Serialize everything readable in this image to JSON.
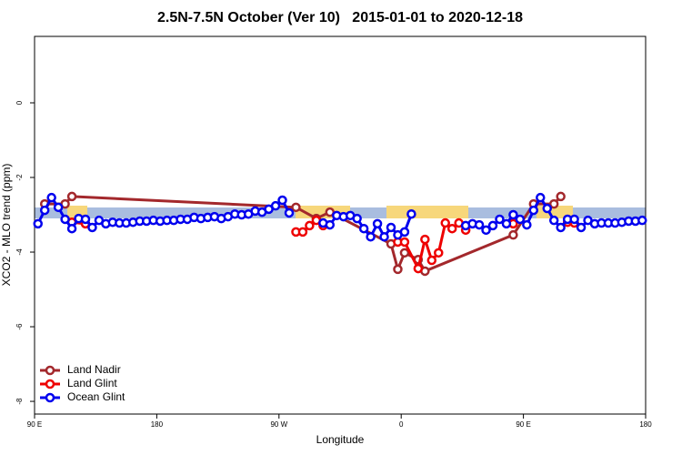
{
  "chart_data": {
    "type": "line",
    "title": "2.5N-7.5N October (Ver 10)   2015-01-01 to 2020-12-18",
    "xlabel": "Longitude",
    "ylabel": "XCO2 - MLO trend (ppm)",
    "xlim": [
      90,
      540
    ],
    "ylim": [
      -8.34,
      1.78
    ],
    "xticks": [
      {
        "value": 90,
        "label": "90 E"
      },
      {
        "value": 180,
        "label": "180"
      },
      {
        "value": 270,
        "label": "90 W"
      },
      {
        "value": 360,
        "label": "0"
      },
      {
        "value": 450,
        "label": "90 E"
      },
      {
        "value": 540,
        "label": "180"
      }
    ],
    "yticks": [
      0,
      -2,
      -4,
      -6,
      -8
    ],
    "legend": "bottomleft",
    "series": [
      {
        "name": "Land Nadir",
        "color": "#a3282c",
        "x": [
          97.5,
          112.5,
          117.5,
          282.5,
          297.5,
          307.5,
          352.5,
          357.5,
          362.5,
          372.5,
          377.5,
          442.5,
          457.5,
          472.5,
          477.5
        ],
        "values": [
          -2.71,
          -2.71,
          -2.51,
          -2.8,
          -3.1,
          -2.93,
          -3.78,
          -4.46,
          -4.02,
          -4.2,
          -4.51,
          -3.54,
          -2.71,
          -2.71,
          -2.51
        ]
      },
      {
        "name": "Land Glint",
        "color": "#ee0000",
        "x": [
          117.5,
          127.5,
          200,
          282.5,
          287.5,
          292.5,
          297.5,
          302.5,
          330,
          357.5,
          362.5,
          372.5,
          377.5,
          382.5,
          387.5,
          392.5,
          397.5,
          402.5,
          407.5,
          425,
          442.5,
          460,
          482.5,
          487.5
        ],
        "values": [
          -3.2,
          -3.24,
          null,
          -3.46,
          -3.46,
          -3.29,
          -3.15,
          -3.29,
          null,
          -3.73,
          -3.73,
          -4.44,
          -3.66,
          -4.22,
          -4.02,
          -3.22,
          -3.37,
          -3.22,
          -3.41,
          null,
          -3.24,
          null,
          -3.2,
          -3.22
        ]
      },
      {
        "name": "Ocean Glint",
        "color": "#0000ee",
        "x": [
          92.5,
          97.5,
          102.5,
          107.5,
          112.5,
          117.5,
          122.5,
          127.5,
          132.5,
          137.5,
          142.5,
          147.5,
          152.5,
          157.5,
          162.5,
          167.5,
          172.5,
          177.5,
          182.5,
          187.5,
          192.5,
          197.5,
          202.5,
          207.5,
          212.5,
          217.5,
          222.5,
          227.5,
          232.5,
          237.5,
          242.5,
          247.5,
          252.5,
          257.5,
          262.5,
          267.5,
          272.5,
          277.5,
          290,
          302.5,
          307.5,
          312.5,
          317.5,
          322.5,
          327.5,
          332.5,
          337.5,
          342.5,
          347.5,
          352.5,
          357.5,
          362.5,
          367.5,
          390,
          407.5,
          412.5,
          417.5,
          422.5,
          427.5,
          432.5,
          437.5,
          442.5,
          447.5,
          452.5,
          457.5,
          462.5,
          467.5,
          472.5,
          477.5,
          482.5,
          487.5,
          492.5,
          497.5,
          502.5,
          507.5,
          512.5,
          517.5,
          522.5,
          527.5,
          532.5,
          537.5
        ],
        "values": [
          -3.24,
          -2.88,
          -2.54,
          -2.8,
          -3.12,
          -3.37,
          -3.1,
          -3.12,
          -3.34,
          -3.15,
          -3.24,
          -3.2,
          -3.22,
          -3.22,
          -3.2,
          -3.17,
          -3.17,
          -3.15,
          -3.17,
          -3.15,
          -3.15,
          -3.12,
          -3.12,
          -3.07,
          -3.1,
          -3.07,
          -3.05,
          -3.1,
          -3.05,
          -2.98,
          -3.0,
          -2.98,
          -2.9,
          -2.93,
          -2.85,
          -2.76,
          -2.61,
          -2.95,
          null,
          -3.22,
          -3.27,
          -3.02,
          -3.05,
          -3.02,
          -3.1,
          -3.37,
          -3.59,
          -3.24,
          -3.59,
          -3.34,
          -3.54,
          -3.46,
          -2.98,
          null,
          -3.29,
          -3.24,
          -3.27,
          -3.41,
          -3.29,
          -3.12,
          -3.24,
          -3.0,
          -3.12,
          -3.27,
          -2.88,
          -2.54,
          -2.83,
          -3.15,
          -3.34,
          -3.12,
          -3.12,
          -3.34,
          -3.15,
          -3.24,
          -3.22,
          -3.22,
          -3.22,
          -3.2,
          -3.17,
          -3.17,
          -3.15
        ]
      }
    ]
  }
}
